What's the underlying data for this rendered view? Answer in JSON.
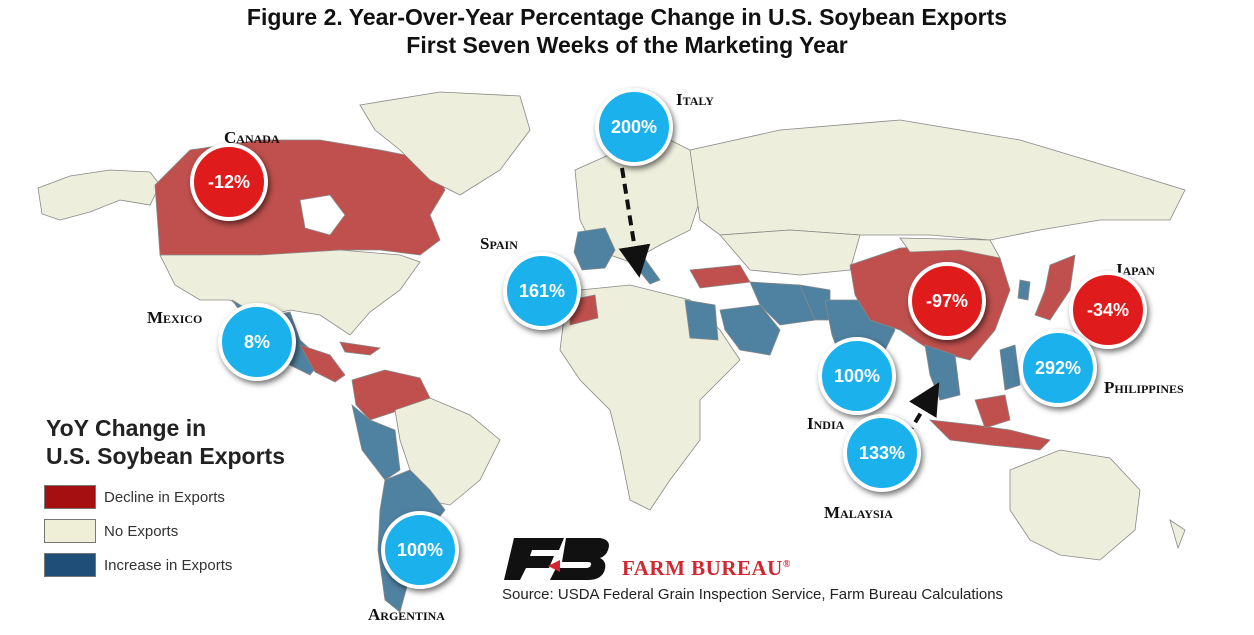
{
  "title": {
    "line1": "Figure 2. Year-Over-Year Percentage Change in U.S. Soybean Exports",
    "line2": "First Seven Weeks of the Marketing Year"
  },
  "colors": {
    "decline": "#c0504d",
    "no_exports": "#eeeedc",
    "increase": "#4f81a0",
    "negative_bubble": "#e01b1b",
    "positive_bubble": "#1ab1ec"
  },
  "countries": [
    {
      "id": "canada",
      "label": "Canada",
      "value": "-12%",
      "direction": "decline"
    },
    {
      "id": "italy",
      "label": "Italy",
      "value": "200%",
      "direction": "increase"
    },
    {
      "id": "spain",
      "label": "Spain",
      "value": "161%",
      "direction": "increase"
    },
    {
      "id": "mexico",
      "label": "Mexico",
      "value": "8%",
      "direction": "increase"
    },
    {
      "id": "china",
      "label": "",
      "value": "-97%",
      "direction": "decline"
    },
    {
      "id": "japan",
      "label": "Japan",
      "value": "-34%",
      "direction": "decline"
    },
    {
      "id": "india",
      "label": "India",
      "value": "100%",
      "direction": "increase"
    },
    {
      "id": "philippines",
      "label": "Philippines",
      "value": "292%",
      "direction": "increase"
    },
    {
      "id": "malaysia",
      "label": "Malaysia",
      "value": "133%",
      "direction": "increase"
    },
    {
      "id": "argentina",
      "label": "Argentina",
      "value": "100%",
      "direction": "increase"
    }
  ],
  "legend": {
    "title_line1": "YoY Change in",
    "title_line2": "U.S. Soybean Exports",
    "items": [
      {
        "label": "Decline in Exports",
        "color": "#a50f12"
      },
      {
        "label": "No Exports",
        "color": "#efefd8"
      },
      {
        "label": "Increase in Exports",
        "color": "#1f4e79"
      }
    ]
  },
  "logo": {
    "name": "FARM BUREAU",
    "mark": "®"
  },
  "source": "Source: USDA Federal Grain Inspection Service, Farm Bureau Calculations"
}
